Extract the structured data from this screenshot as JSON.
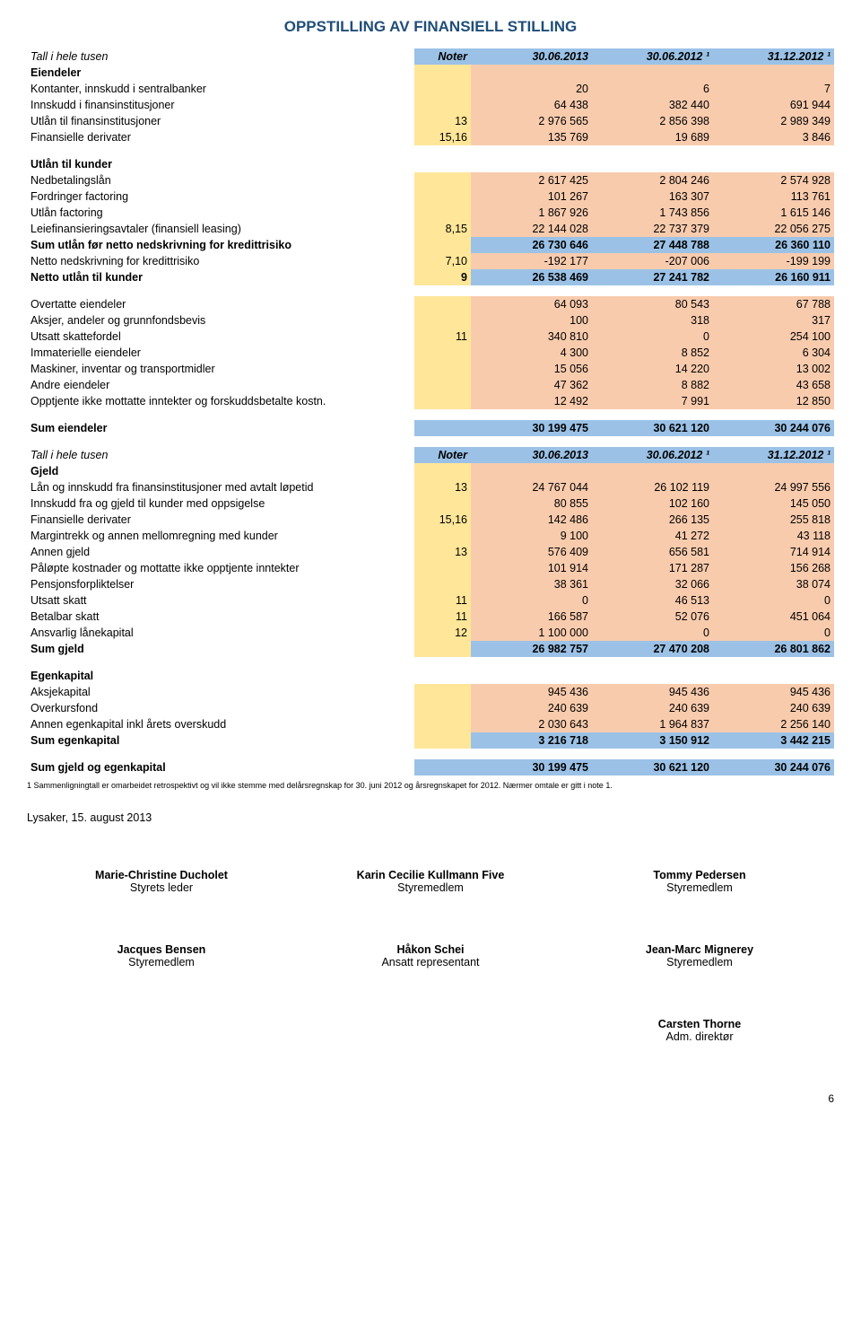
{
  "page_title": "OPPSTILLING AV FINANSIELL STILLING",
  "colors": {
    "title_color": "#1f4e79",
    "blue_cell": "#9bc2e6",
    "pink_cell": "#f8cbad",
    "yellow_cell": "#ffe699",
    "text_color": "#000000",
    "background": "#ffffff"
  },
  "header1": {
    "label": "Tall i hele tusen",
    "noter": "Noter",
    "c1": "30.06.2013",
    "c2": "30.06.2012 ¹",
    "c3": "31.12.2012 ¹"
  },
  "eiendeler": {
    "section": "Eiendeler",
    "rows": [
      {
        "label": "Kontanter, innskudd i sentralbanker",
        "noter": "",
        "c1": "20",
        "c2": "6",
        "c3": "7"
      },
      {
        "label": "Innskudd i  finansinstitusjoner",
        "noter": "",
        "c1": "64 438",
        "c2": "382 440",
        "c3": "691 944"
      },
      {
        "label": "Utlån til  finansinstitusjoner",
        "noter": "13",
        "c1": "2 976 565",
        "c2": "2 856 398",
        "c3": "2 989 349"
      },
      {
        "label": "Finansielle derivater",
        "noter": "15,16",
        "c1": "135 769",
        "c2": "19 689",
        "c3": "3 846"
      }
    ]
  },
  "utlan_kunder": {
    "section": "Utlån til kunder",
    "rows": [
      {
        "label": "Nedbetalingslån",
        "noter": "",
        "c1": "2 617 425",
        "c2": "2 804 246",
        "c3": "2 574 928"
      },
      {
        "label": "Fordringer factoring",
        "noter": "",
        "c1": "101 267",
        "c2": "163 307",
        "c3": "113 761"
      },
      {
        "label": "Utlån factoring",
        "noter": "",
        "c1": "1 867 926",
        "c2": "1 743 856",
        "c3": "1 615 146"
      },
      {
        "label": "Leiefinansieringsavtaler (finansiell leasing)",
        "noter": "8,15",
        "c1": "22 144 028",
        "c2": "22 737 379",
        "c3": "22 056 275"
      },
      {
        "label": "Sum utlån før netto nedskrivning for kredittrisiko",
        "noter": "",
        "c1": "26 730 646",
        "c2": "27 448 788",
        "c3": "26 360 110",
        "bold": true,
        "blue": true
      },
      {
        "label": "Netto nedskrivning for kredittrisiko",
        "noter": "7,10",
        "c1": "-192 177",
        "c2": "-207 006",
        "c3": "-199 199"
      },
      {
        "label": "Netto utlån til kunder",
        "noter": "9",
        "c1": "26 538 469",
        "c2": "27 241 782",
        "c3": "26 160 911",
        "bold": true,
        "blue": true
      }
    ]
  },
  "overtatte": {
    "rows": [
      {
        "label": "Overtatte eiendeler",
        "noter": "",
        "c1": "64 093",
        "c2": "80 543",
        "c3": "67 788"
      },
      {
        "label": "Aksjer, andeler og grunnfondsbevis",
        "noter": "",
        "c1": "100",
        "c2": "318",
        "c3": "317"
      },
      {
        "label": "Utsatt skattefordel",
        "noter": "11",
        "c1": "340 810",
        "c2": "0",
        "c3": "254 100"
      },
      {
        "label": "Immaterielle eiendeler",
        "noter": "",
        "c1": "4 300",
        "c2": "8 852",
        "c3": "6 304"
      },
      {
        "label": "Maskiner, inventar og transportmidler",
        "noter": "",
        "c1": "15 056",
        "c2": "14 220",
        "c3": "13 002"
      },
      {
        "label": "Andre eiendeler",
        "noter": "",
        "c1": "47 362",
        "c2": "8 882",
        "c3": "43 658"
      },
      {
        "label": "Opptjente ikke mottatte inntekter og forskuddsbetalte kostn.",
        "noter": "",
        "c1": "12 492",
        "c2": "7 991",
        "c3": "12 850"
      }
    ]
  },
  "sum_eiendeler": {
    "label": "Sum eiendeler",
    "c1": "30 199 475",
    "c2": "30 621 120",
    "c3": "30 244 076"
  },
  "header2": {
    "label": "Tall i hele tusen",
    "noter": "Noter",
    "c1": "30.06.2013",
    "c2": "30.06.2012 ¹",
    "c3": "31.12.2012 ¹"
  },
  "gjeld": {
    "section": "Gjeld",
    "rows": [
      {
        "label": "Lån og innskudd fra finansinstitusjoner med avtalt løpetid",
        "noter": "13",
        "c1": "24 767 044",
        "c2": "26 102 119",
        "c3": "24 997 556"
      },
      {
        "label": "Innskudd fra og gjeld til kunder med oppsigelse",
        "noter": "",
        "c1": "80 855",
        "c2": "102 160",
        "c3": "145 050"
      },
      {
        "label": "Finansielle derivater",
        "noter": "15,16",
        "c1": "142 486",
        "c2": "266 135",
        "c3": "255 818"
      },
      {
        "label": "Margintrekk og annen mellomregning med kunder",
        "noter": "",
        "c1": "9 100",
        "c2": "41 272",
        "c3": "43 118"
      },
      {
        "label": "Annen gjeld",
        "noter": "13",
        "c1": "576 409",
        "c2": "656 581",
        "c3": "714 914"
      },
      {
        "label": "Påløpte kostnader og mottatte ikke opptjente inntekter",
        "noter": "",
        "c1": "101 914",
        "c2": "171 287",
        "c3": "156 268"
      },
      {
        "label": "Pensjonsforpliktelser",
        "noter": "",
        "c1": "38 361",
        "c2": "32 066",
        "c3": "38 074"
      },
      {
        "label": "Utsatt skatt",
        "noter": "11",
        "c1": "0",
        "c2": "46 513",
        "c3": "0"
      },
      {
        "label": "Betalbar skatt",
        "noter": "11",
        "c1": "166 587",
        "c2": "52 076",
        "c3": "451 064"
      },
      {
        "label": "Ansvarlig lånekapital",
        "noter": "12",
        "c1": "1 100 000",
        "c2": "0",
        "c3": "0"
      },
      {
        "label": "Sum gjeld",
        "noter": "",
        "c1": "26 982 757",
        "c2": "27 470 208",
        "c3": "26 801 862",
        "bold": true,
        "blue": true
      }
    ]
  },
  "egenkapital": {
    "section": "Egenkapital",
    "rows": [
      {
        "label": "Aksjekapital",
        "noter": "",
        "c1": "945 436",
        "c2": "945 436",
        "c3": "945 436"
      },
      {
        "label": "Overkursfond",
        "noter": "",
        "c1": "240 639",
        "c2": "240 639",
        "c3": "240 639"
      },
      {
        "label": "Annen egenkapital inkl årets overskudd",
        "noter": "",
        "c1": "2 030 643",
        "c2": "1 964 837",
        "c3": "2 256 140"
      },
      {
        "label": "Sum egenkapital",
        "noter": "",
        "c1": "3 216 718",
        "c2": "3 150 912",
        "c3": "3 442 215",
        "bold": true,
        "blue": true
      }
    ]
  },
  "sum_gjeld_ek": {
    "label": "Sum gjeld og egenkapital",
    "c1": "30 199 475",
    "c2": "30 621 120",
    "c3": "30 244 076"
  },
  "footnote": "1 Sammenligningtall er omarbeidet retrospektivt og vil ikke stemme med delårsregnskap for 30. juni 2012 og årsregnskapet for 2012. Nærmer omtale er gitt i note 1.",
  "sign_date": "Lysaker, 15. august 2013",
  "signatures": [
    [
      {
        "name": "Marie-Christine Ducholet",
        "title": "Styrets leder"
      },
      {
        "name": "Karin Cecilie Kullmann Five",
        "title": "Styremedlem"
      },
      {
        "name": "Tommy Pedersen",
        "title": "Styremedlem"
      }
    ],
    [
      {
        "name": "Jacques Bensen",
        "title": "Styremedlem"
      },
      {
        "name": "Håkon Schei",
        "title": "Ansatt representant"
      },
      {
        "name": "Jean-Marc Mignerey",
        "title": "Styremedlem"
      }
    ],
    [
      {
        "name": "",
        "title": ""
      },
      {
        "name": "",
        "title": ""
      },
      {
        "name": "Carsten Thorne",
        "title": "Adm. direktør"
      }
    ]
  ],
  "page_number": "6"
}
